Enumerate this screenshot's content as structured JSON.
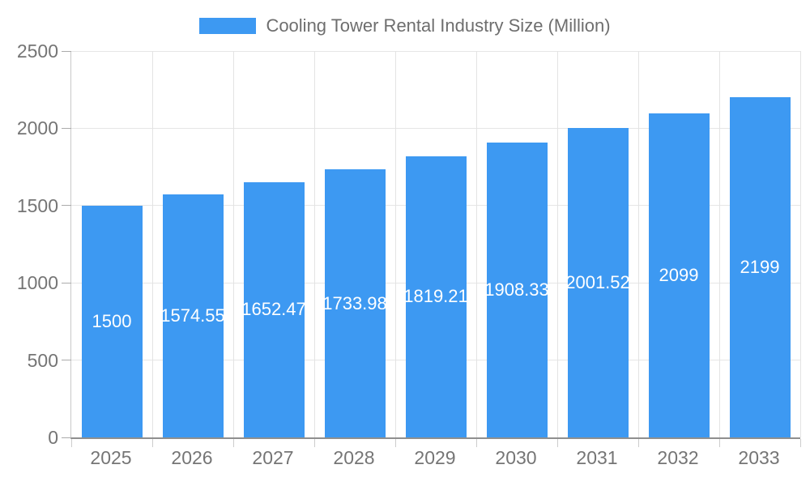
{
  "legend": {
    "label": "Cooling Tower Rental Industry Size (Million)"
  },
  "chart_data": {
    "type": "bar",
    "title": "Cooling Tower Rental Industry Size (Million)",
    "xlabel": "",
    "ylabel": "",
    "categories": [
      "2025",
      "2026",
      "2027",
      "2028",
      "2029",
      "2030",
      "2031",
      "2032",
      "2033"
    ],
    "series": [
      {
        "name": "Cooling Tower Rental Industry Size (Million)",
        "values": [
          1500,
          1574.55,
          1652.47,
          1733.98,
          1819.21,
          1908.33,
          2001.52,
          2099,
          2199
        ],
        "labels": [
          "1500",
          "1574.55",
          "1652.47",
          "1733.98",
          "1819.21",
          "1908.33",
          "2001.52",
          "2099",
          "2199"
        ]
      }
    ],
    "ylim": [
      0,
      2500
    ],
    "y_ticks": [
      0,
      500,
      1000,
      1500,
      2000,
      2500
    ],
    "grid": true,
    "legend_position": "top",
    "colors": {
      "bar": "#3d99f2",
      "bar_value_label": "#ffffff",
      "axis_text": "#757575",
      "legend_text": "#6e6e6e",
      "gridline": "#e6e6e6",
      "x_axis_line": "#8f8f8f",
      "y_axis_line": "#c9c9c9"
    }
  }
}
